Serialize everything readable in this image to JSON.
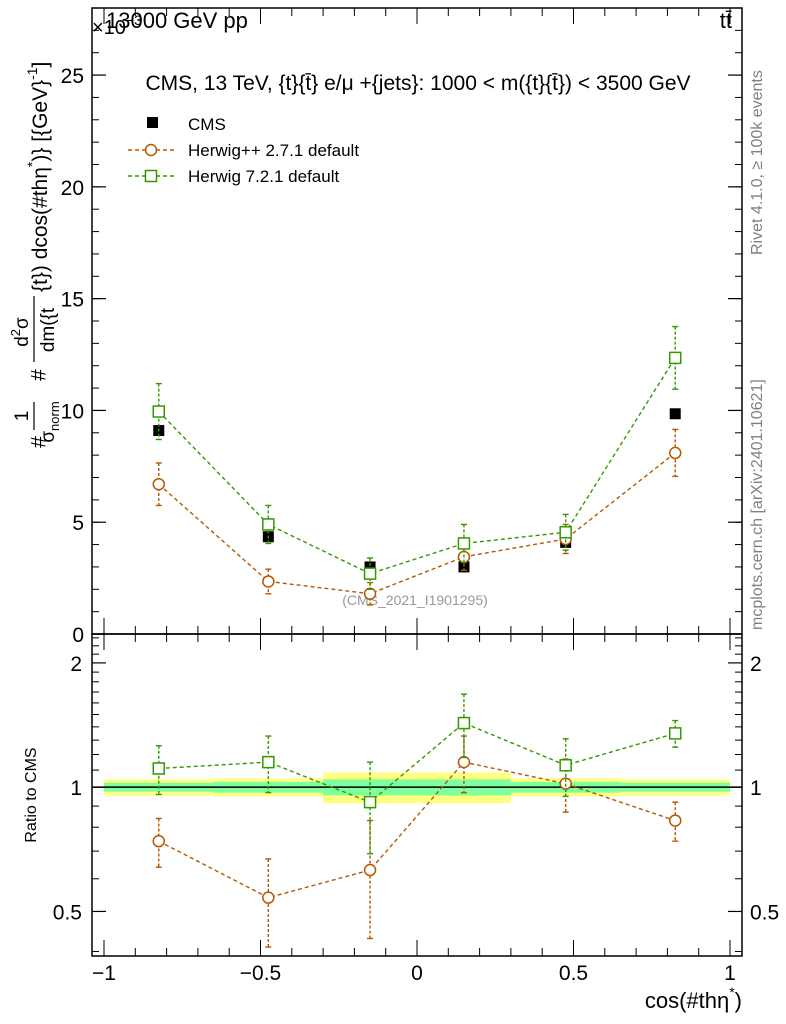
{
  "header": {
    "energy_label": "13000 GeV pp",
    "process_label": "tt̄",
    "multiplier_label": "×10",
    "multiplier_exponent": "−3"
  },
  "side_labels": {
    "rivet": "Rivet 4.1.0, ≥ 100k events",
    "mcplots": "mcplots.cern.ch [arXiv:2401.10621]"
  },
  "colors": {
    "cms": "#000000",
    "herwigpp": "#b35900",
    "herwig7": "#339900",
    "band_inner": "#80ff9e",
    "band_outer": "#ffff80"
  },
  "chart_data": [
    {
      "type": "scatter",
      "panel": "main",
      "title": "CMS, 13 TeV, {t}{t̄} e/μ +{jets}: 1000 < m({t}{t̄}) < 3500 GeV",
      "ylabel_parts": {
        "hash1": "#",
        "frac1_num": "1",
        "frac1_den": "σ",
        "frac1_den_sub": "norm",
        "hash2": "#",
        "frac2_num": "d",
        "frac2_num_sup": "2",
        "frac2_num_tail": "σ",
        "frac2_den": "dm({t",
        "rest": "{t}) dcos(#thη",
        "rest_sup": "*",
        "rest_tail": ")} [{GeV}",
        "rest_sup2": "-1",
        "rest_end": "]"
      },
      "watermark": "(CMS_2021_I1901295)",
      "xlim": [
        -1,
        1
      ],
      "ylim": [
        0,
        0.028
      ],
      "y_ticks": [
        0,
        0.005,
        0.01,
        0.015,
        0.02,
        0.025
      ],
      "y_tick_labels": [
        "0",
        "5",
        "10",
        "15",
        "20",
        "25"
      ],
      "legend": {
        "placement": "top-left",
        "entries": [
          "CMS",
          "Herwig++ 2.7.1 default",
          "Herwig 7.2.1 default"
        ]
      },
      "x": [
        -0.825,
        -0.475,
        -0.15,
        0.15,
        0.475,
        0.825
      ],
      "series": [
        {
          "name": "CMS",
          "marker": "square-filled",
          "values": [
            0.0091,
            0.00435,
            0.003,
            0.003,
            0.0041,
            0.00985
          ],
          "errors": [
            0.0002,
            0.00015,
            0.00012,
            0.00012,
            0.00015,
            0.0002
          ]
        },
        {
          "name": "Herwig++ 2.7.1 default",
          "marker": "circle-open",
          "style": "dashed",
          "values": [
            0.0067,
            0.00235,
            0.0018,
            0.00345,
            0.00425,
            0.0081
          ],
          "errors": [
            0.00095,
            0.00055,
            0.0005,
            0.0006,
            0.00065,
            0.00105
          ]
        },
        {
          "name": "Herwig 7.2.1 default",
          "marker": "square-open",
          "style": "dashed",
          "values": [
            0.00995,
            0.0049,
            0.0027,
            0.00405,
            0.00455,
            0.01235
          ],
          "errors": [
            0.00125,
            0.00085,
            0.0007,
            0.00085,
            0.0008,
            0.0014
          ]
        }
      ]
    },
    {
      "type": "scatter",
      "panel": "ratio",
      "ylabel": "Ratio to CMS",
      "xlabel_base": "cos(#thη",
      "xlabel_sup": "*",
      "xlabel_tail": ")",
      "xlim": [
        -1,
        1
      ],
      "ylim": [
        0.39,
        2.35
      ],
      "x_ticks": [
        -1,
        -0.5,
        0,
        0.5,
        1
      ],
      "x_tick_labels": [
        "−1",
        "−0.5",
        "0",
        "0.5",
        "1"
      ],
      "y_ticks": [
        0.5,
        1,
        2
      ],
      "y_tick_labels": [
        "0.5",
        "1",
        "2"
      ],
      "bands": [
        {
          "x_from": -1,
          "x_to": -0.65,
          "inner": 0.025,
          "outer": 0.045
        },
        {
          "x_from": -0.65,
          "x_to": -0.3,
          "inner": 0.03,
          "outer": 0.05
        },
        {
          "x_from": -0.3,
          "x_to": 0,
          "inner": 0.045,
          "outer": 0.085
        },
        {
          "x_from": 0,
          "x_to": 0.3,
          "inner": 0.045,
          "outer": 0.085
        },
        {
          "x_from": 0.3,
          "x_to": 0.65,
          "inner": 0.03,
          "outer": 0.05
        },
        {
          "x_from": 0.65,
          "x_to": 1,
          "inner": 0.025,
          "outer": 0.045
        }
      ],
      "x": [
        -0.825,
        -0.475,
        -0.15,
        0.15,
        0.475,
        0.825
      ],
      "series": [
        {
          "name": "Herwig++ 2.7.1 default",
          "marker": "circle-open",
          "style": "dashed",
          "values": [
            0.74,
            0.54,
            0.63,
            1.15,
            1.02,
            0.83
          ],
          "errors": [
            0.1,
            0.13,
            0.2,
            0.18,
            0.15,
            0.09
          ]
        },
        {
          "name": "Herwig 7.2.1 default",
          "marker": "square-open",
          "style": "dashed",
          "values": [
            1.11,
            1.15,
            0.92,
            1.43,
            1.13,
            1.35
          ],
          "errors": [
            0.15,
            0.18,
            0.23,
            0.25,
            0.18,
            0.1
          ]
        }
      ]
    }
  ]
}
